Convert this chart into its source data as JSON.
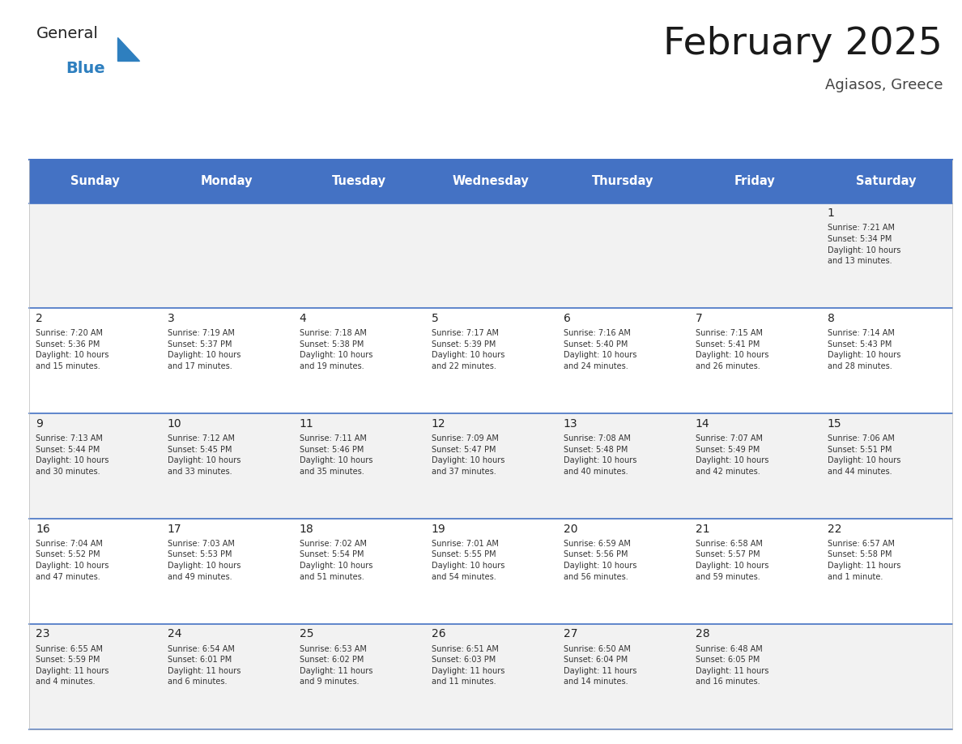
{
  "title": "February 2025",
  "subtitle": "Agiasos, Greece",
  "header_bg": "#4472C4",
  "header_text_color": "#FFFFFF",
  "days_of_week": [
    "Sunday",
    "Monday",
    "Tuesday",
    "Wednesday",
    "Thursday",
    "Friday",
    "Saturday"
  ],
  "cell_bg_odd": "#F2F2F2",
  "cell_bg_even": "#FFFFFF",
  "cell_text_color": "#333333",
  "day_num_color": "#222222",
  "line_color": "#4472C4",
  "logo_general_color": "#333333",
  "logo_blue_color": "#2E7FBF",
  "calendar": [
    [
      null,
      null,
      null,
      null,
      null,
      null,
      {
        "day": 1,
        "sunrise": "7:21 AM",
        "sunset": "5:34 PM",
        "daylight": "10 hours\nand 13 minutes."
      }
    ],
    [
      {
        "day": 2,
        "sunrise": "7:20 AM",
        "sunset": "5:36 PM",
        "daylight": "10 hours\nand 15 minutes."
      },
      {
        "day": 3,
        "sunrise": "7:19 AM",
        "sunset": "5:37 PM",
        "daylight": "10 hours\nand 17 minutes."
      },
      {
        "day": 4,
        "sunrise": "7:18 AM",
        "sunset": "5:38 PM",
        "daylight": "10 hours\nand 19 minutes."
      },
      {
        "day": 5,
        "sunrise": "7:17 AM",
        "sunset": "5:39 PM",
        "daylight": "10 hours\nand 22 minutes."
      },
      {
        "day": 6,
        "sunrise": "7:16 AM",
        "sunset": "5:40 PM",
        "daylight": "10 hours\nand 24 minutes."
      },
      {
        "day": 7,
        "sunrise": "7:15 AM",
        "sunset": "5:41 PM",
        "daylight": "10 hours\nand 26 minutes."
      },
      {
        "day": 8,
        "sunrise": "7:14 AM",
        "sunset": "5:43 PM",
        "daylight": "10 hours\nand 28 minutes."
      }
    ],
    [
      {
        "day": 9,
        "sunrise": "7:13 AM",
        "sunset": "5:44 PM",
        "daylight": "10 hours\nand 30 minutes."
      },
      {
        "day": 10,
        "sunrise": "7:12 AM",
        "sunset": "5:45 PM",
        "daylight": "10 hours\nand 33 minutes."
      },
      {
        "day": 11,
        "sunrise": "7:11 AM",
        "sunset": "5:46 PM",
        "daylight": "10 hours\nand 35 minutes."
      },
      {
        "day": 12,
        "sunrise": "7:09 AM",
        "sunset": "5:47 PM",
        "daylight": "10 hours\nand 37 minutes."
      },
      {
        "day": 13,
        "sunrise": "7:08 AM",
        "sunset": "5:48 PM",
        "daylight": "10 hours\nand 40 minutes."
      },
      {
        "day": 14,
        "sunrise": "7:07 AM",
        "sunset": "5:49 PM",
        "daylight": "10 hours\nand 42 minutes."
      },
      {
        "day": 15,
        "sunrise": "7:06 AM",
        "sunset": "5:51 PM",
        "daylight": "10 hours\nand 44 minutes."
      }
    ],
    [
      {
        "day": 16,
        "sunrise": "7:04 AM",
        "sunset": "5:52 PM",
        "daylight": "10 hours\nand 47 minutes."
      },
      {
        "day": 17,
        "sunrise": "7:03 AM",
        "sunset": "5:53 PM",
        "daylight": "10 hours\nand 49 minutes."
      },
      {
        "day": 18,
        "sunrise": "7:02 AM",
        "sunset": "5:54 PM",
        "daylight": "10 hours\nand 51 minutes."
      },
      {
        "day": 19,
        "sunrise": "7:01 AM",
        "sunset": "5:55 PM",
        "daylight": "10 hours\nand 54 minutes."
      },
      {
        "day": 20,
        "sunrise": "6:59 AM",
        "sunset": "5:56 PM",
        "daylight": "10 hours\nand 56 minutes."
      },
      {
        "day": 21,
        "sunrise": "6:58 AM",
        "sunset": "5:57 PM",
        "daylight": "10 hours\nand 59 minutes."
      },
      {
        "day": 22,
        "sunrise": "6:57 AM",
        "sunset": "5:58 PM",
        "daylight": "11 hours\nand 1 minute."
      }
    ],
    [
      {
        "day": 23,
        "sunrise": "6:55 AM",
        "sunset": "5:59 PM",
        "daylight": "11 hours\nand 4 minutes."
      },
      {
        "day": 24,
        "sunrise": "6:54 AM",
        "sunset": "6:01 PM",
        "daylight": "11 hours\nand 6 minutes."
      },
      {
        "day": 25,
        "sunrise": "6:53 AM",
        "sunset": "6:02 PM",
        "daylight": "11 hours\nand 9 minutes."
      },
      {
        "day": 26,
        "sunrise": "6:51 AM",
        "sunset": "6:03 PM",
        "daylight": "11 hours\nand 11 minutes."
      },
      {
        "day": 27,
        "sunrise": "6:50 AM",
        "sunset": "6:04 PM",
        "daylight": "11 hours\nand 14 minutes."
      },
      {
        "day": 28,
        "sunrise": "6:48 AM",
        "sunset": "6:05 PM",
        "daylight": "11 hours\nand 16 minutes."
      },
      null
    ]
  ]
}
